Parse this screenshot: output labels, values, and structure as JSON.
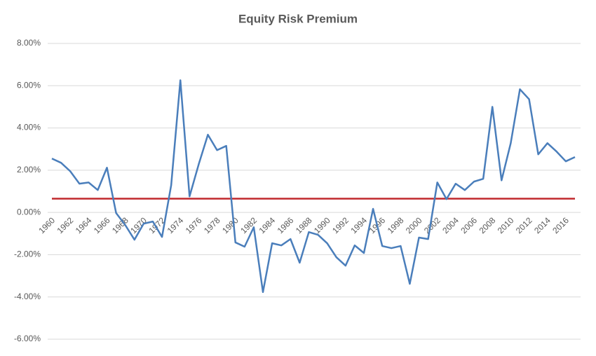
{
  "chart_data": {
    "type": "line",
    "title": "Equity Risk Premium",
    "categories": [
      "1960",
      null,
      "1962",
      null,
      "1964",
      null,
      "1966",
      null,
      "1968",
      null,
      "1970",
      null,
      "1972",
      null,
      "1974",
      null,
      "1976",
      null,
      "1978",
      null,
      "1980",
      null,
      "1982",
      null,
      "1984",
      null,
      "1986",
      null,
      "1988",
      null,
      "1990",
      null,
      "1992",
      null,
      "1994",
      null,
      "1996",
      null,
      "1998",
      null,
      "2000",
      null,
      "2002",
      null,
      "2004",
      null,
      "2006",
      null,
      "2008",
      null,
      "2010",
      null,
      "2012",
      null,
      "2014",
      null,
      "2016",
      null
    ],
    "series": [
      {
        "color": "#4a7ebb",
        "values": [
          2.55,
          2.35,
          1.95,
          1.36,
          1.42,
          1.06,
          2.12,
          -0.03,
          -0.6,
          -1.29,
          -0.53,
          -0.43,
          -1.16,
          1.29,
          6.26,
          0.76,
          2.28,
          3.68,
          2.95,
          3.15,
          -1.42,
          -1.62,
          -0.7,
          -3.77,
          -1.46,
          -1.56,
          -1.26,
          -2.38,
          -0.93,
          -1.06,
          -1.46,
          -2.12,
          -2.52,
          -1.56,
          -1.92,
          0.17,
          -1.59,
          -1.69,
          -1.59,
          -3.38,
          -1.19,
          -1.26,
          1.42,
          0.63,
          1.36,
          1.06,
          1.46,
          1.59,
          5.0,
          1.52,
          3.28,
          5.83,
          5.36,
          2.75,
          3.28,
          2.88,
          2.42,
          2.62
        ]
      }
    ],
    "reference_line": {
      "value": 0.65,
      "color": "#c0282d"
    },
    "ylim": [
      -6,
      8
    ],
    "yticks": [
      {
        "value": -6,
        "label": "-6.00%"
      },
      {
        "value": -4,
        "label": "-4.00%"
      },
      {
        "value": -2,
        "label": "-2.00%"
      },
      {
        "value": 0,
        "label": "0.00%"
      },
      {
        "value": 2,
        "label": "2.00%"
      },
      {
        "value": 4,
        "label": "4.00%"
      },
      {
        "value": 6,
        "label": "6.00%"
      },
      {
        "value": 8,
        "label": "8.00%"
      }
    ],
    "grid": true
  }
}
